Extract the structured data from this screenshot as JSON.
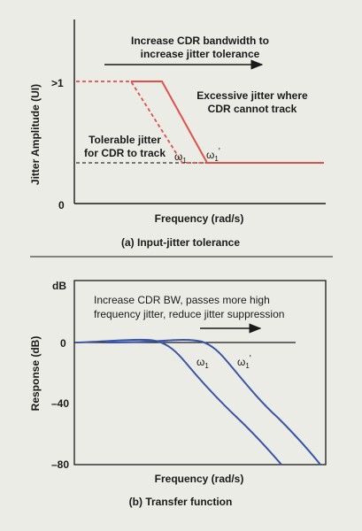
{
  "chart_data": [
    {
      "type": "line",
      "caption": "(a) Input-jitter tolerance",
      "xlabel": "Frequency (rad/s)",
      "ylabel": "Jitter Amplitude (UI)",
      "y_ticks": [
        ">1",
        "0"
      ],
      "annotations": {
        "top_line1": "Increase CDR bandwidth to",
        "top_line2": "increase jitter tolerance",
        "right_line1": "Excessive jitter where",
        "right_line2": "CDR cannot track",
        "left_line1": "Tolerable jitter",
        "left_line2": "for CDR to track",
        "omega1": "ω",
        "omega1_sub": "1",
        "omega1p": "ω",
        "omega1p_sub": "1",
        "omega1p_prime": "'"
      },
      "series": [
        {
          "style": "dashed",
          "color": "#e0504a",
          "x": [
            0,
            0.22,
            0.43,
            0.62
          ],
          "y": [
            1.0,
            1.0,
            0.32,
            0.32
          ]
        },
        {
          "style": "solid",
          "color": "#e0504a",
          "x": [
            0.22,
            0.38,
            0.58,
            1.0
          ],
          "y": [
            1.0,
            1.0,
            0.32,
            0.32
          ]
        },
        {
          "style": "dashed",
          "color": "#333333",
          "x": [
            0,
            1.0
          ],
          "y": [
            0.32,
            0.32
          ]
        }
      ]
    },
    {
      "type": "line",
      "caption": "(b) Transfer function",
      "xlabel": "Frequency (rad/s)",
      "ylabel": "Response (dB)",
      "unit_label": "dB",
      "y_ticks": [
        "0",
        "–40",
        "–80"
      ],
      "ylim": [
        -80,
        0
      ],
      "annotations": {
        "top_line1": "Increase CDR BW, passes more high",
        "top_line2": "frequency jitter, reduce jitter suppression",
        "omega1": "ω",
        "omega1_sub": "1",
        "omega1p": "ω",
        "omega1p_sub": "1",
        "omega1p_prime": "'"
      },
      "series": [
        {
          "name": "ω1",
          "color": "#3a55a8",
          "x": [
            0,
            0.3,
            0.38,
            0.45,
            0.55,
            0.7,
            0.85
          ],
          "y": [
            0,
            0.5,
            0,
            -6,
            -20,
            -45,
            -80
          ]
        },
        {
          "name": "ω1'",
          "color": "#3a55a8",
          "x": [
            0,
            0.45,
            0.52,
            0.6,
            0.7,
            0.85,
            1.0
          ],
          "y": [
            0,
            0.3,
            0,
            -6,
            -20,
            -45,
            -80
          ]
        }
      ]
    }
  ]
}
